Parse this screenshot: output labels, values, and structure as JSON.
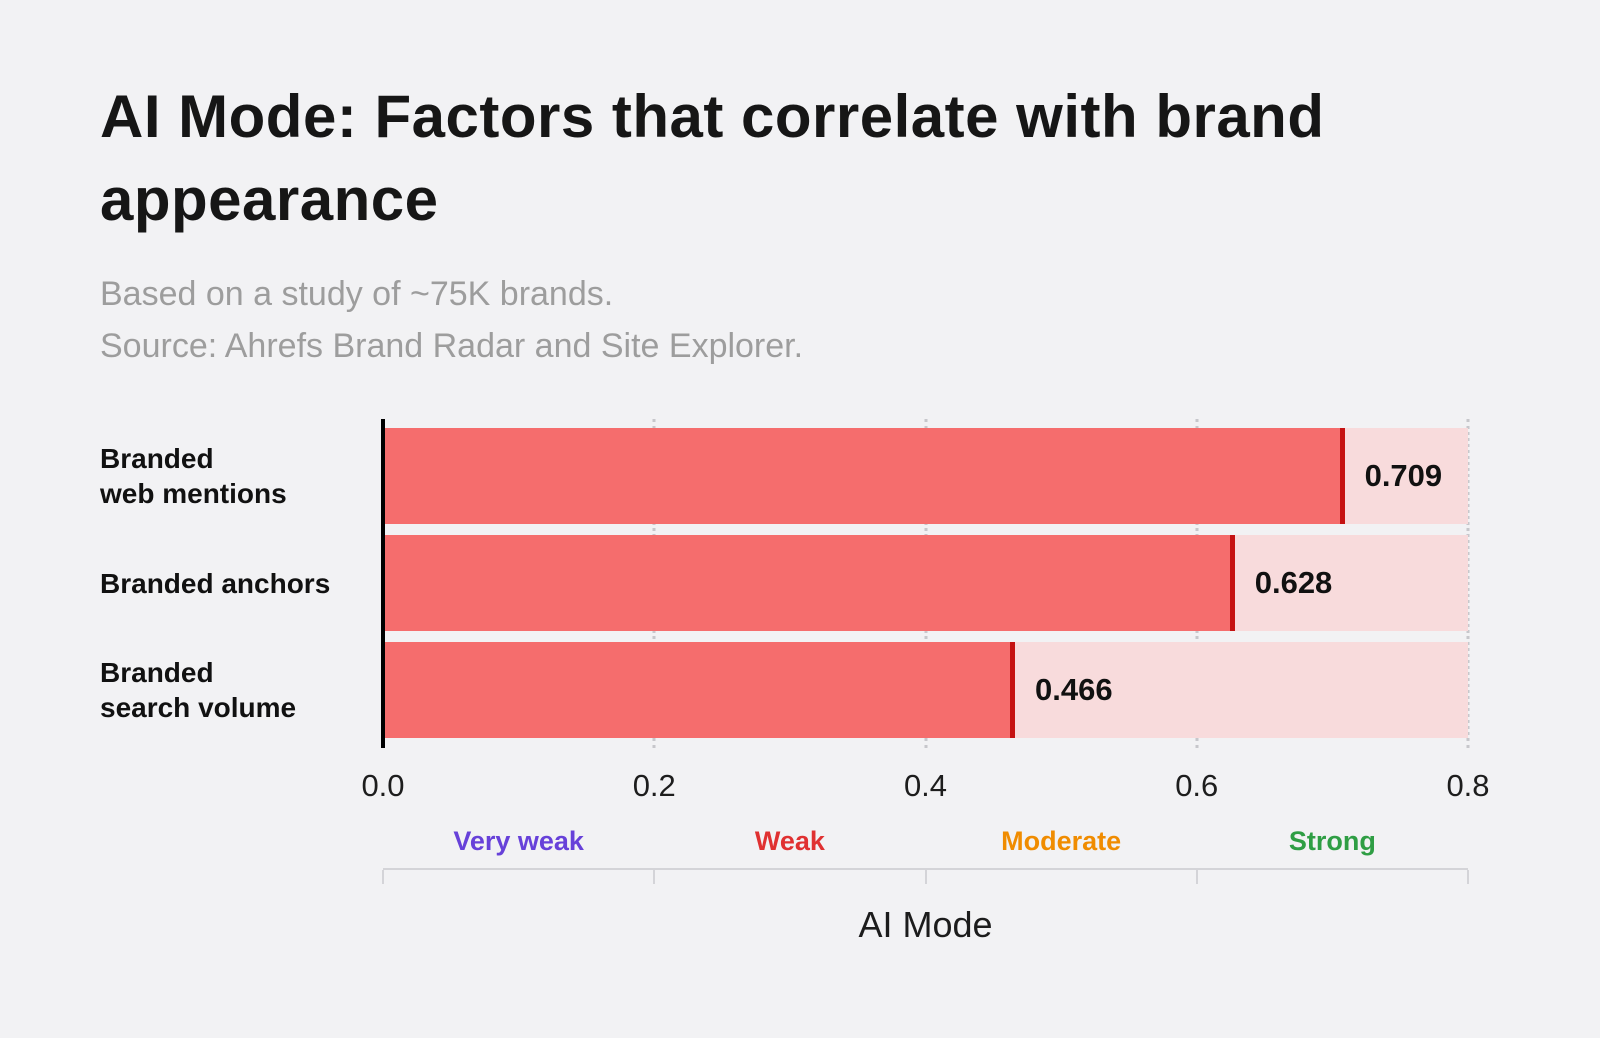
{
  "page": {
    "background": "#f2f2f4"
  },
  "chart_data": {
    "type": "bar",
    "orientation": "horizontal",
    "title": "AI Mode: Factors that correlate with brand appearance",
    "subtitle_lines": [
      "Based on a study of ~75K brands.",
      "Source: Ahrefs Brand Radar and Site Explorer."
    ],
    "categories": [
      "Branded\nweb mentions",
      "Branded anchors",
      "Branded\nsearch volume"
    ],
    "values": [
      0.709,
      0.628,
      0.466
    ],
    "value_labels": [
      "0.709",
      "0.628",
      "0.466"
    ],
    "xlabel": "AI Mode",
    "xlim": [
      0,
      0.8
    ],
    "x_tick_values": [
      0,
      0.2,
      0.4,
      0.6,
      0.8
    ],
    "x_tick_labels": [
      "0.0",
      "0.2",
      "0.4",
      "0.6",
      "0.8"
    ],
    "gridlines": [
      0.2,
      0.4,
      0.6,
      0.8
    ],
    "grid": "dotted",
    "legend_position": "none",
    "strength_bands": [
      {
        "label": "Very weak",
        "color": "#6741d9",
        "from": 0,
        "to": 0.2
      },
      {
        "label": "Weak",
        "color": "#e03131",
        "from": 0.2,
        "to": 0.4
      },
      {
        "label": "Moderate",
        "color": "#f08c00",
        "from": 0.4,
        "to": 0.6
      },
      {
        "label": "Strong",
        "color": "#2f9e44",
        "from": 0.6,
        "to": 0.8
      }
    ],
    "colors": {
      "page_bg": "#f2f2f4",
      "title": "#161616",
      "subtitle": "#9d9d9d",
      "bar_fill": "#f56d6d",
      "bar_track": "#f8dbdc",
      "bar_edge": "#c51212",
      "value_label": "#111111",
      "grid": "#c7c7cb",
      "axis_line": "#000000",
      "ruler": "#d4d4d8"
    }
  }
}
